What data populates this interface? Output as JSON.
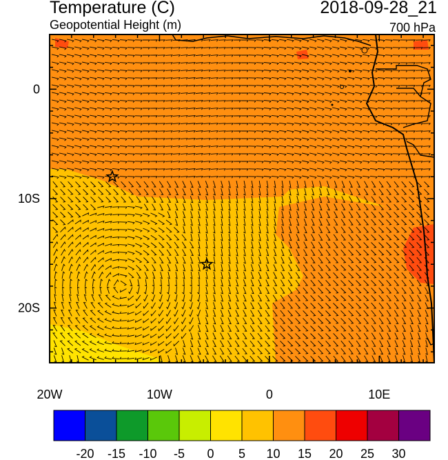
{
  "header": {
    "title": "Temperature (C)",
    "subtitle": "Geopotential Height (m)",
    "valid_time": "2018-09-28_21",
    "level": "700 hPa"
  },
  "map": {
    "lon_range": [
      -20,
      15
    ],
    "lat_range": [
      -25,
      5
    ],
    "x_ticks": [
      {
        "lon": -20,
        "label": "20W"
      },
      {
        "lon": -10,
        "label": "10W"
      },
      {
        "lon": 0,
        "label": "0"
      },
      {
        "lon": 10,
        "label": "10E"
      }
    ],
    "y_ticks": [
      {
        "lat": 0,
        "label": "0"
      },
      {
        "lat": -10,
        "label": "10S"
      },
      {
        "lat": -20,
        "label": "20S"
      }
    ],
    "markers": [
      {
        "name": "star",
        "lon": -14.3,
        "lat": -8.0
      },
      {
        "name": "star",
        "lon": -5.7,
        "lat": -16.0
      }
    ],
    "vector_field": "wind barbs"
  },
  "colorbar": {
    "labels": [
      "-20",
      "-15",
      "-10",
      "-5",
      "0",
      "5",
      "10",
      "15",
      "20",
      "25",
      "30"
    ],
    "colors": [
      "#0000ff",
      "#0a4f99",
      "#0e9a2a",
      "#5ac80a",
      "#c8ee00",
      "#ffe300",
      "#ffc200",
      "#ff8f10",
      "#ff4c0f",
      "#ee0000",
      "#a30040",
      "#6a0082"
    ]
  },
  "colors": {
    "temp_5_10": "#ffc200",
    "temp_10_15": "#ff8f10",
    "temp_15_20": "#ff4c0f",
    "temp_0_5": "#ffe300",
    "coastline": "#000000"
  }
}
